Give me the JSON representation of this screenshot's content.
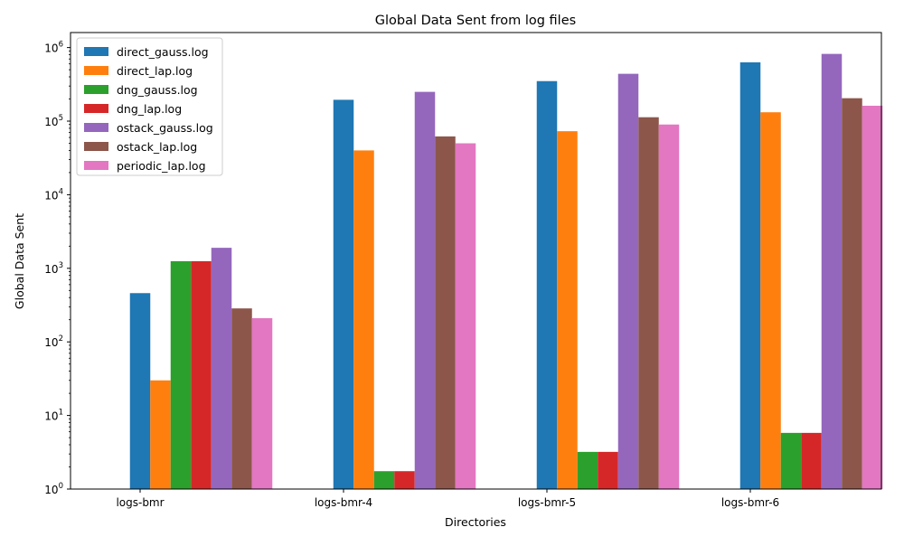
{
  "chart_data": {
    "type": "bar",
    "title": "Global Data Sent from log files",
    "xlabel": "Directories",
    "ylabel": "Global Data Sent",
    "yscale": "log",
    "ylim": [
      1,
      1600000
    ],
    "y_ticks": [
      {
        "value": 1,
        "base": "10",
        "exp": "0"
      },
      {
        "value": 10,
        "base": "10",
        "exp": "1"
      },
      {
        "value": 100,
        "base": "10",
        "exp": "2"
      },
      {
        "value": 1000,
        "base": "10",
        "exp": "3"
      },
      {
        "value": 10000,
        "base": "10",
        "exp": "4"
      },
      {
        "value": 100000,
        "base": "10",
        "exp": "5"
      },
      {
        "value": 1000000,
        "base": "10",
        "exp": "6"
      }
    ],
    "categories": [
      "logs-bmr",
      "logs-bmr-4",
      "logs-bmr-5",
      "logs-bmr-6"
    ],
    "legend_position": "top-left",
    "series": [
      {
        "name": "direct_gauss.log",
        "color": "#1f77b4",
        "values": [
          460,
          195000,
          350000,
          630000
        ]
      },
      {
        "name": "direct_lap.log",
        "color": "#ff7f0e",
        "values": [
          30,
          40000,
          73000,
          132000
        ]
      },
      {
        "name": "dng_gauss.log",
        "color": "#2ca02c",
        "values": [
          1250,
          1.75,
          3.2,
          5.8
        ]
      },
      {
        "name": "dng_lap.log",
        "color": "#d62728",
        "values": [
          1250,
          1.75,
          3.2,
          5.8
        ]
      },
      {
        "name": "ostack_gauss.log",
        "color": "#9467bd",
        "values": [
          1900,
          250000,
          440000,
          820000
        ]
      },
      {
        "name": "ostack_lap.log",
        "color": "#8c564b",
        "values": [
          285,
          62000,
          113000,
          205000
        ]
      },
      {
        "name": "periodic_lap.log",
        "color": "#e377c2",
        "values": [
          210,
          50000,
          90000,
          162000
        ]
      }
    ]
  }
}
